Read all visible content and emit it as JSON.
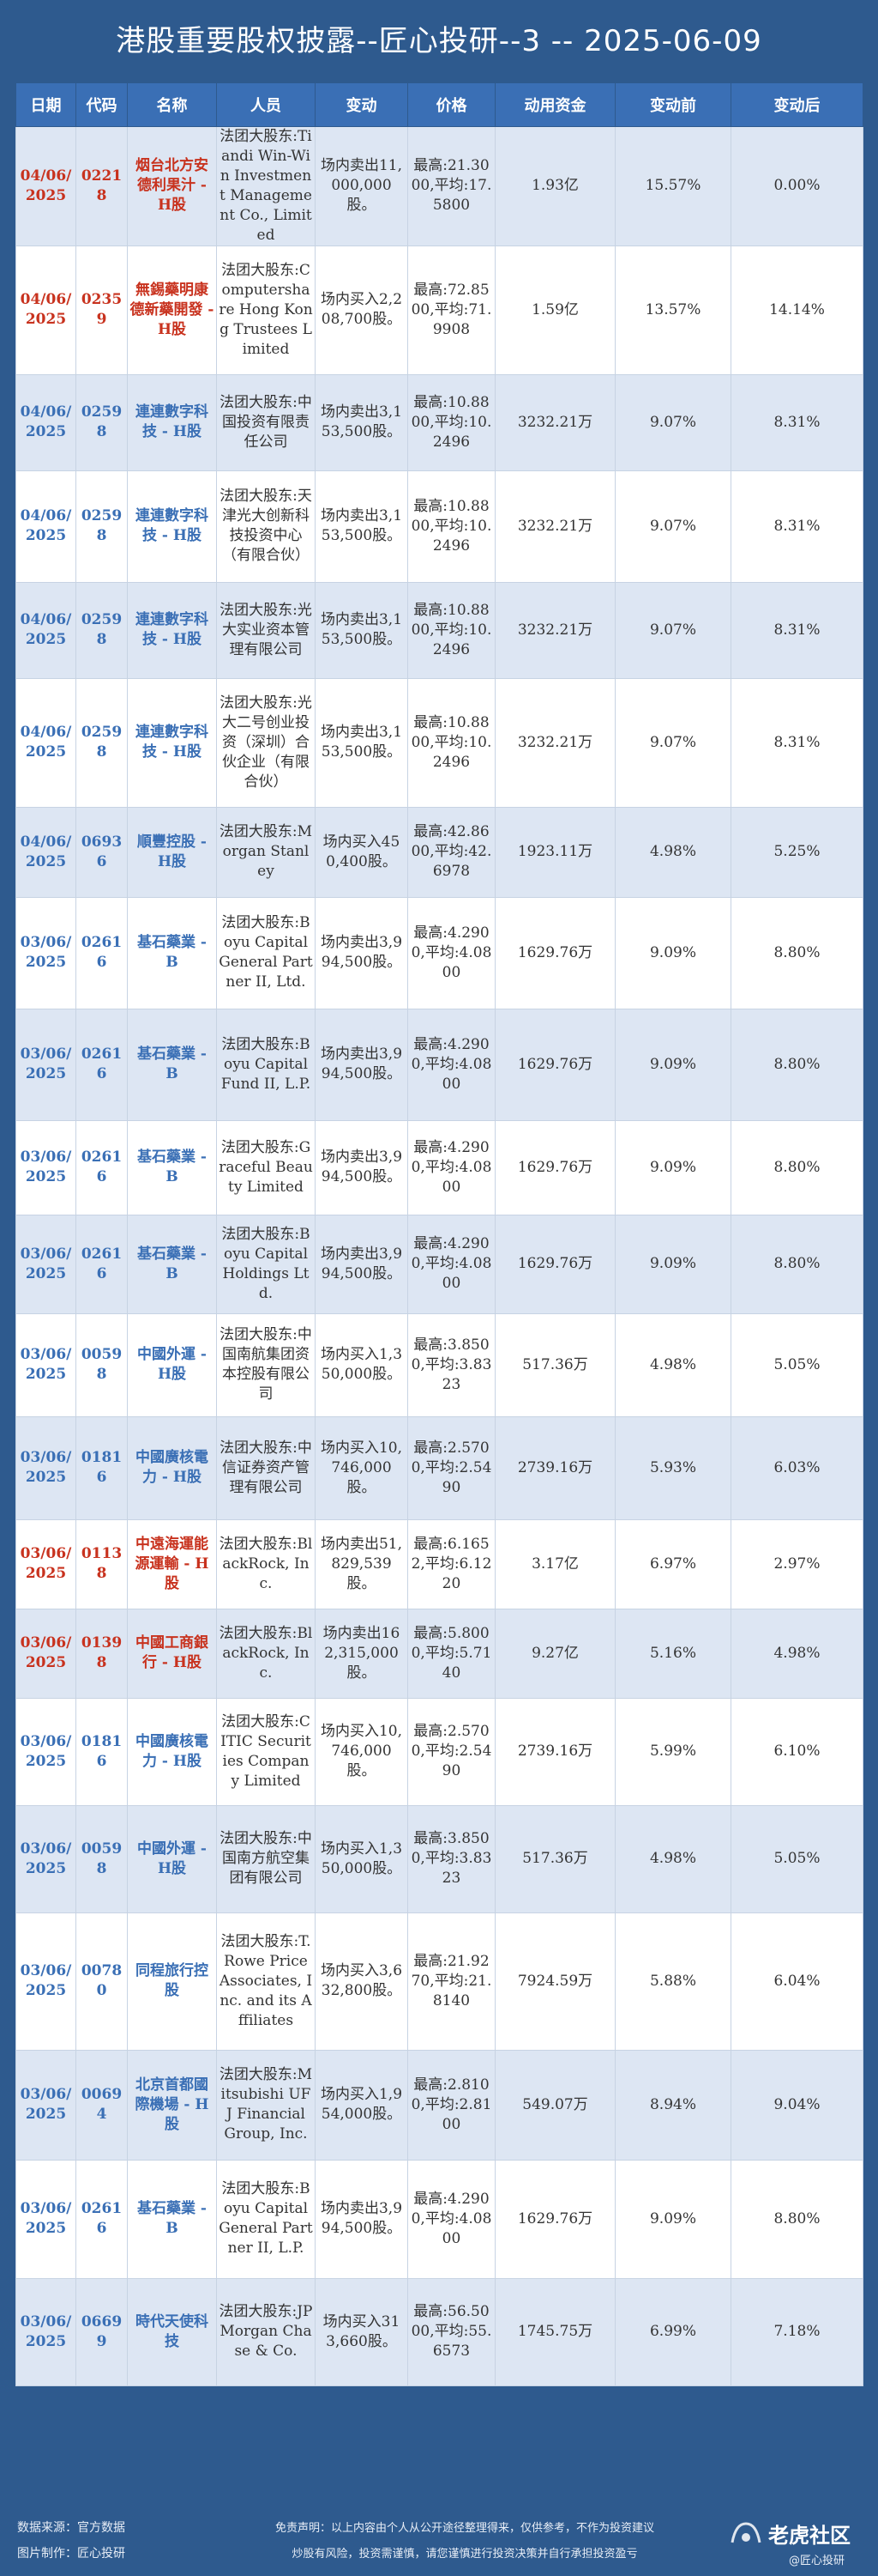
{
  "title": "港股重要股权披露--匠心投研--3 -- 2025-06-09",
  "columns": [
    "日期",
    "代码",
    "名称",
    "人员",
    "变动",
    "价格",
    "动用资金",
    "变动前",
    "变动后"
  ],
  "rows": [
    {
      "date": "04/06/2025",
      "code": "02218",
      "name": "烟台北方安德利果汁 - H股",
      "person": "法团大股东:Tiandi Win-Win Investment Management Co., Limited",
      "action": "场内卖出11,000,000股。",
      "price": "最高:21.3000,平均:17.5800",
      "funds": "1.93亿",
      "before": "15.57%",
      "after": "0.00%",
      "color": "red"
    },
    {
      "date": "04/06/2025",
      "code": "02359",
      "name": "無錫藥明康德新藥開發 - H股",
      "person": "法团大股东:Computershare Hong Kong Trustees Limited",
      "action": "场内买入2,208,700股。",
      "price": "最高:72.8500,平均:71.9908",
      "funds": "1.59亿",
      "before": "13.57%",
      "after": "14.14%",
      "color": "red"
    },
    {
      "date": "04/06/2025",
      "code": "02598",
      "name": "連連數字科技 - H股",
      "person": "法团大股东:中国投资有限责任公司",
      "action": "场内卖出3,153,500股。",
      "price": "最高:10.8800,平均:10.2496",
      "funds": "3232.21万",
      "before": "9.07%",
      "after": "8.31%",
      "color": "blue"
    },
    {
      "date": "04/06/2025",
      "code": "02598",
      "name": "連連數字科技 - H股",
      "person": "法团大股东:天津光大创新科技投资中心（有限合伙）",
      "action": "场内卖出3,153,500股。",
      "price": "最高:10.8800,平均:10.2496",
      "funds": "3232.21万",
      "before": "9.07%",
      "after": "8.31%",
      "color": "blue"
    },
    {
      "date": "04/06/2025",
      "code": "02598",
      "name": "連連數字科技 - H股",
      "person": "法团大股东:光大实业资本管理有限公司",
      "action": "场内卖出3,153,500股。",
      "price": "最高:10.8800,平均:10.2496",
      "funds": "3232.21万",
      "before": "9.07%",
      "after": "8.31%",
      "color": "blue"
    },
    {
      "date": "04/06/2025",
      "code": "02598",
      "name": "連連數字科技 - H股",
      "person": "法团大股东:光大二号创业投资（深圳）合伙企业（有限合伙）",
      "action": "场内卖出3,153,500股。",
      "price": "最高:10.8800,平均:10.2496",
      "funds": "3232.21万",
      "before": "9.07%",
      "after": "8.31%",
      "color": "blue"
    },
    {
      "date": "04/06/2025",
      "code": "06936",
      "name": "順豐控股 - H股",
      "person": "法团大股东:Morgan Stanley",
      "action": "场内买入450,400股。",
      "price": "最高:42.8600,平均:42.6978",
      "funds": "1923.11万",
      "before": "4.98%",
      "after": "5.25%",
      "color": "blue"
    },
    {
      "date": "03/06/2025",
      "code": "02616",
      "name": "基石藥業 - B",
      "person": "法团大股东:Boyu Capital General Partner II, Ltd.",
      "action": "场内卖出3,994,500股。",
      "price": "最高:4.2900,平均:4.0800",
      "funds": "1629.76万",
      "before": "9.09%",
      "after": "8.80%",
      "color": "blue"
    },
    {
      "date": "03/06/2025",
      "code": "02616",
      "name": "基石藥業 - B",
      "person": "法团大股东:Boyu Capital Fund II, L.P.",
      "action": "场内卖出3,994,500股。",
      "price": "最高:4.2900,平均:4.0800",
      "funds": "1629.76万",
      "before": "9.09%",
      "after": "8.80%",
      "color": "blue"
    },
    {
      "date": "03/06/2025",
      "code": "02616",
      "name": "基石藥業 - B",
      "person": "法团大股东:Graceful Beauty Limited",
      "action": "场内卖出3,994,500股。",
      "price": "最高:4.2900,平均:4.0800",
      "funds": "1629.76万",
      "before": "9.09%",
      "after": "8.80%",
      "color": "blue"
    },
    {
      "date": "03/06/2025",
      "code": "02616",
      "name": "基石藥業 - B",
      "person": "法团大股东:Boyu Capital Holdings Ltd.",
      "action": "场内卖出3,994,500股。",
      "price": "最高:4.2900,平均:4.0800",
      "funds": "1629.76万",
      "before": "9.09%",
      "after": "8.80%",
      "color": "blue"
    },
    {
      "date": "03/06/2025",
      "code": "00598",
      "name": "中國外運 - H股",
      "person": "法团大股东:中国南航集团资本控股有限公司",
      "action": "场内买入1,350,000股。",
      "price": "最高:3.8500,平均:3.8323",
      "funds": "517.36万",
      "before": "4.98%",
      "after": "5.05%",
      "color": "blue"
    },
    {
      "date": "03/06/2025",
      "code": "01816",
      "name": "中國廣核電力 - H股",
      "person": "法团大股东:中信证券资产管理有限公司",
      "action": "场内买入10,746,000股。",
      "price": "最高:2.5700,平均:2.5490",
      "funds": "2739.16万",
      "before": "5.93%",
      "after": "6.03%",
      "color": "blue"
    },
    {
      "date": "03/06/2025",
      "code": "01138",
      "name": "中遠海運能源運輸 - H股",
      "person": "法团大股东:BlackRock, Inc.",
      "action": "场内卖出51,829,539股。",
      "price": "最高:6.1652,平均:6.1220",
      "funds": "3.17亿",
      "before": "6.97%",
      "after": "2.97%",
      "color": "red"
    },
    {
      "date": "03/06/2025",
      "code": "01398",
      "name": "中國工商銀行 - H股",
      "person": "法团大股东:BlackRock, Inc.",
      "action": "场内卖出162,315,000股。",
      "price": "最高:5.8000,平均:5.7140",
      "funds": "9.27亿",
      "before": "5.16%",
      "after": "4.98%",
      "color": "red"
    },
    {
      "date": "03/06/2025",
      "code": "01816",
      "name": "中國廣核電力 - H股",
      "person": "法团大股东:CITIC Securities Company Limited",
      "action": "场内买入10,746,000股。",
      "price": "最高:2.5700,平均:2.5490",
      "funds": "2739.16万",
      "before": "5.99%",
      "after": "6.10%",
      "color": "blue"
    },
    {
      "date": "03/06/2025",
      "code": "00598",
      "name": "中國外運 - H股",
      "person": "法团大股东:中国南方航空集团有限公司",
      "action": "场内买入1,350,000股。",
      "price": "最高:3.8500,平均:3.8323",
      "funds": "517.36万",
      "before": "4.98%",
      "after": "5.05%",
      "color": "blue"
    },
    {
      "date": "03/06/2025",
      "code": "00780",
      "name": "同程旅行控股",
      "person": "法团大股东:T. Rowe Price Associates, Inc. and its Affiliates",
      "action": "场内买入3,632,800股。",
      "price": "最高:21.9270,平均:21.8140",
      "funds": "7924.59万",
      "before": "5.88%",
      "after": "6.04%",
      "color": "blue"
    },
    {
      "date": "03/06/2025",
      "code": "00694",
      "name": "北京首都國際機場 - H股",
      "person": "法团大股东:Mitsubishi UFJ Financial Group, Inc.",
      "action": "场内买入1,954,000股。",
      "price": "最高:2.8100,平均:2.8100",
      "funds": "549.07万",
      "before": "8.94%",
      "after": "9.04%",
      "color": "blue"
    },
    {
      "date": "03/06/2025",
      "code": "02616",
      "name": "基石藥業 - B",
      "person": "法团大股东:Boyu Capital General Partner II, L.P.",
      "action": "场内卖出3,994,500股。",
      "price": "最高:4.2900,平均:4.0800",
      "funds": "1629.76万",
      "before": "9.09%",
      "after": "8.80%",
      "color": "blue"
    },
    {
      "date": "03/06/2025",
      "code": "06699",
      "name": "時代天使科技",
      "person": "法团大股东:JPMorgan Chase & Co.",
      "action": "场内买入313,660股。",
      "price": "最高:56.5000,平均:55.6573",
      "funds": "1745.75万",
      "before": "6.99%",
      "after": "7.18%",
      "color": "blue"
    }
  ],
  "footer": {
    "source": "数据来源：官方数据",
    "credit": "图片制作：匠心投研",
    "disclaimer1": "免责声明：以上内容由个人从公开途径整理得来，仅供参考，不作为投资建议",
    "disclaimer2": "炒股有风险，投资需谨慎，请您谨慎进行投资决策并自行承担投资盈亏",
    "brand": "老虎社区",
    "handle": "@匠心投研"
  }
}
